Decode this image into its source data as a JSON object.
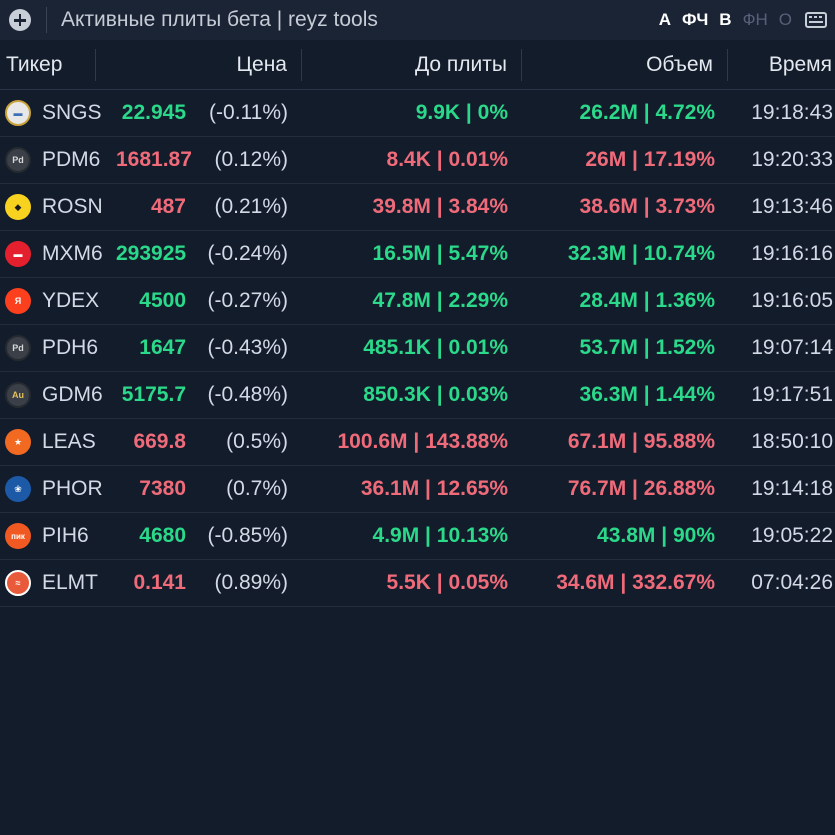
{
  "window": {
    "title": "Активные плиты бета | reyz tools",
    "add_icon": "plus-circle-icon",
    "keyboard_icon": "keyboard-icon",
    "flags": [
      {
        "label": "А",
        "active": true
      },
      {
        "label": "ФЧ",
        "active": true
      },
      {
        "label": "В",
        "active": true
      },
      {
        "label": "ФН",
        "active": false
      },
      {
        "label": "О",
        "active": false
      }
    ]
  },
  "colors": {
    "positive": "#2bd98a",
    "negative": "#f06b7a",
    "background": "#131c2b"
  },
  "table": {
    "columns": {
      "ticker": "Тикер",
      "price": "Цена",
      "plate": "До плиты",
      "volume": "Объем",
      "time": "Время"
    },
    "rows": [
      {
        "ticker": "SNGS",
        "price": "22.945",
        "change": "(-0.11%)",
        "price_color": "green",
        "plate": "9.9K | 0%",
        "plate_color": "green",
        "volume": "26.2M | 4.72%",
        "volume_color": "green",
        "time": "19:18:43",
        "logo": "sngs-logo-icon"
      },
      {
        "ticker": "PDM6",
        "price": "1681.87",
        "change": "(0.12%)",
        "price_color": "red",
        "plate": "8.4K | 0.01%",
        "plate_color": "red",
        "volume": "26M | 17.19%",
        "volume_color": "red",
        "time": "19:20:33",
        "logo": "palladium-logo-icon"
      },
      {
        "ticker": "ROSN",
        "price": "487",
        "change": "(0.21%)",
        "price_color": "red",
        "plate": "39.8M | 3.84%",
        "plate_color": "red",
        "volume": "38.6M | 3.73%",
        "volume_color": "red",
        "time": "19:13:46",
        "logo": "rosneft-logo-icon"
      },
      {
        "ticker": "MXM6",
        "price": "293925",
        "change": "(-0.24%)",
        "price_color": "green",
        "plate": "16.5M | 5.47%",
        "plate_color": "green",
        "volume": "32.3M | 10.74%",
        "volume_color": "green",
        "time": "19:16:16",
        "logo": "moex-logo-icon"
      },
      {
        "ticker": "YDEX",
        "price": "4500",
        "change": "(-0.27%)",
        "price_color": "green",
        "plate": "47.8M | 2.29%",
        "plate_color": "green",
        "volume": "28.4M | 1.36%",
        "volume_color": "green",
        "time": "19:16:05",
        "logo": "yandex-logo-icon"
      },
      {
        "ticker": "PDH6",
        "price": "1647",
        "change": "(-0.43%)",
        "price_color": "green",
        "plate": "485.1K | 0.01%",
        "plate_color": "green",
        "volume": "53.7M | 1.52%",
        "volume_color": "green",
        "time": "19:07:14",
        "logo": "palladium-logo-icon"
      },
      {
        "ticker": "GDM6",
        "price": "5175.7",
        "change": "(-0.48%)",
        "price_color": "green",
        "plate": "850.3K | 0.03%",
        "plate_color": "green",
        "volume": "36.3M | 1.44%",
        "volume_color": "green",
        "time": "19:17:51",
        "logo": "gold-logo-icon"
      },
      {
        "ticker": "LEAS",
        "price": "669.8",
        "change": "(0.5%)",
        "price_color": "red",
        "plate": "100.6M | 143.88%",
        "plate_color": "red",
        "volume": "67.1M | 95.88%",
        "volume_color": "red",
        "time": "18:50:10",
        "logo": "europlan-logo-icon"
      },
      {
        "ticker": "PHOR",
        "price": "7380",
        "change": "(0.7%)",
        "price_color": "red",
        "plate": "36.1M | 12.65%",
        "plate_color": "red",
        "volume": "76.7M | 26.88%",
        "volume_color": "red",
        "time": "19:14:18",
        "logo": "phosagro-logo-icon"
      },
      {
        "ticker": "PIH6",
        "price": "4680",
        "change": "(-0.85%)",
        "price_color": "green",
        "plate": "4.9M | 10.13%",
        "plate_color": "green",
        "volume": "43.8M | 90%",
        "volume_color": "green",
        "time": "19:05:22",
        "logo": "pik-logo-icon",
        "logo_text": "пик"
      },
      {
        "ticker": "ELMT",
        "price": "0.141",
        "change": "(0.89%)",
        "price_color": "red",
        "plate": "5.5K | 0.05%",
        "plate_color": "red",
        "volume": "34.6M | 332.67%",
        "volume_color": "red",
        "time": "07:04:26",
        "logo": "elmt-logo-icon"
      }
    ]
  }
}
